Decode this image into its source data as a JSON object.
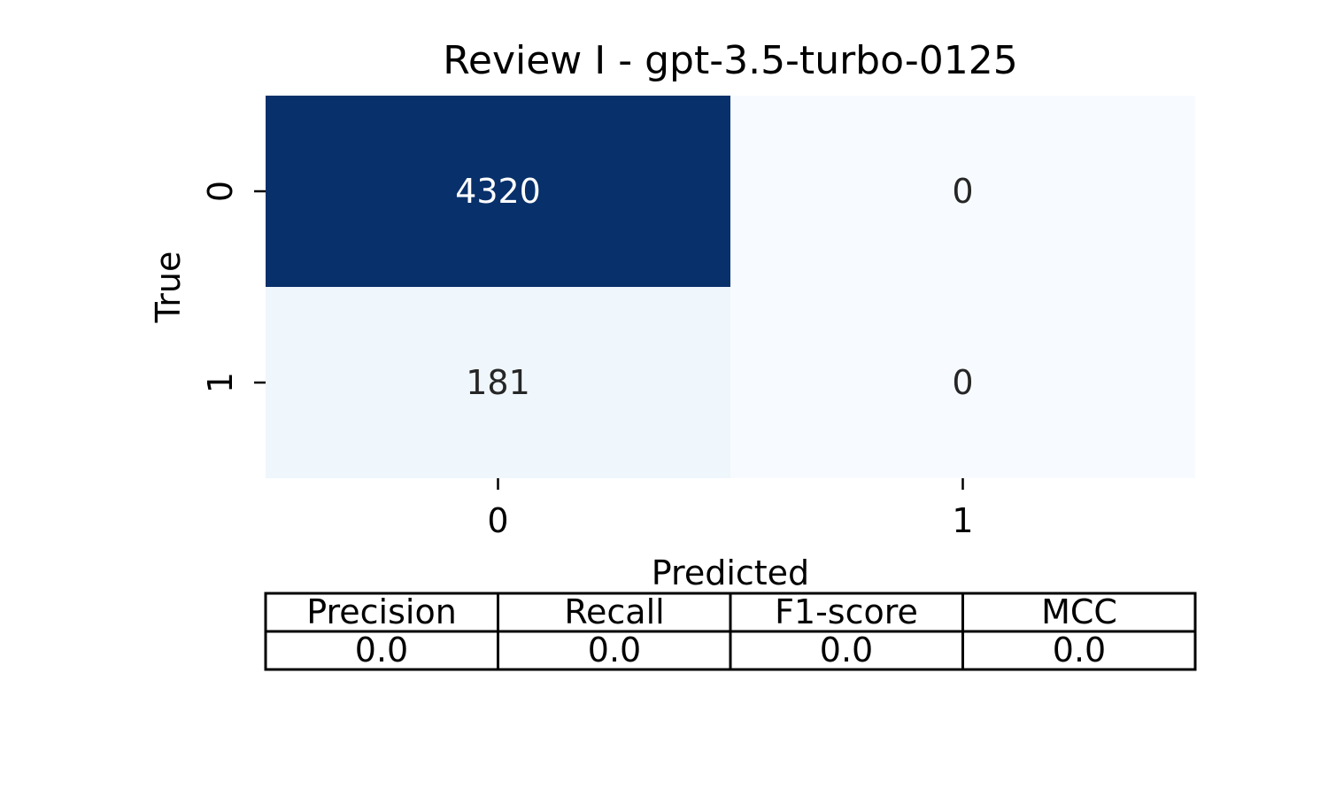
{
  "chart_data": {
    "type": "heatmap",
    "title": "Review I - gpt-3.5-turbo-0125",
    "xlabel": "Predicted",
    "ylabel": "True",
    "x_categories": [
      "0",
      "1"
    ],
    "y_categories": [
      "0",
      "1"
    ],
    "matrix": [
      [
        4320,
        0
      ],
      [
        181,
        0
      ]
    ],
    "cell_labels": [
      [
        "4320",
        "0"
      ],
      [
        "181",
        "0"
      ]
    ],
    "colormap": "Blues",
    "color_low": "#f7fbff",
    "color_high": "#08306b",
    "text_dark": "#262626",
    "text_light": "#ffffff",
    "colorbar": false
  },
  "metrics_table": {
    "headers": [
      "Precision",
      "Recall",
      "F1-score",
      "MCC"
    ],
    "values": [
      "0.0",
      "0.0",
      "0.0",
      "0.0"
    ]
  }
}
